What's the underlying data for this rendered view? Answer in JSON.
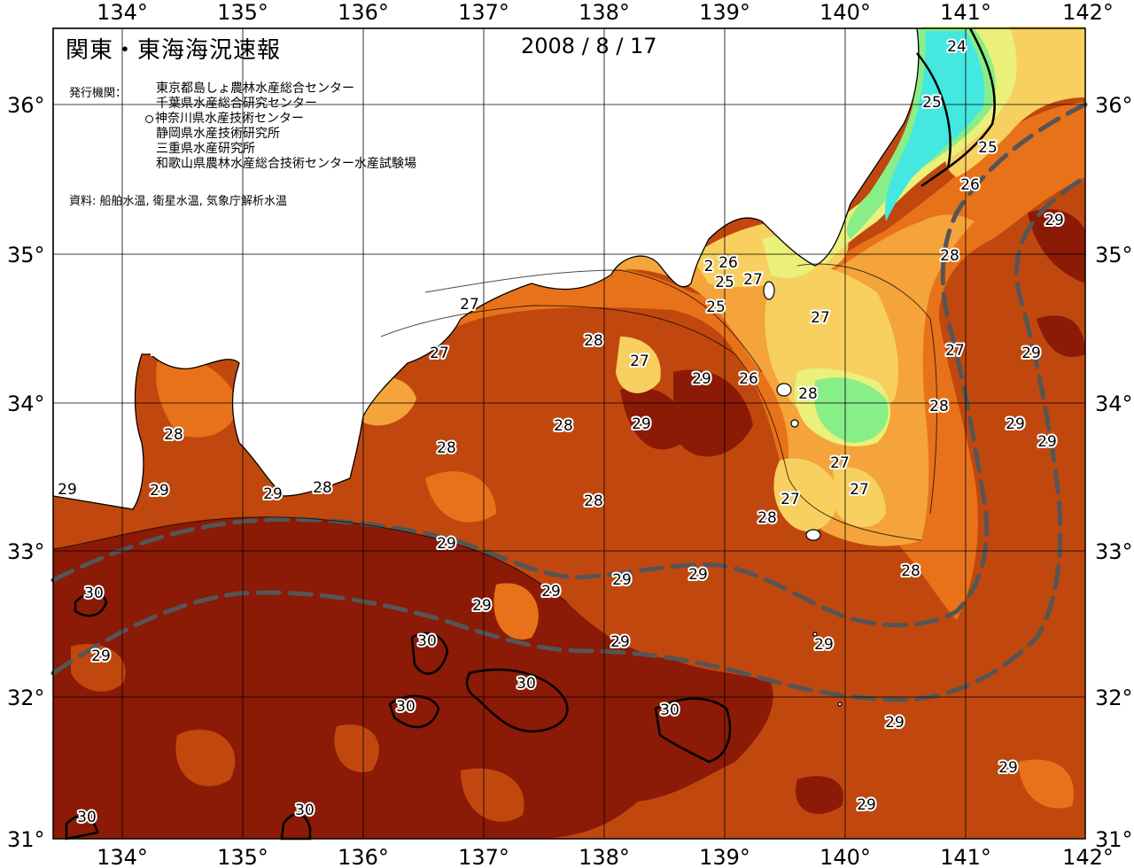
{
  "title": "関東・東海海況速報",
  "date": "2008 / 8 / 17",
  "institutions_label": "発行機関：",
  "institutions": [
    "東京都島しょ農林水産総合センター",
    "千葉県水産総合研究センター",
    "神奈川県水産技術センター",
    "静岡県水産技術研究所",
    "三重県水産研究所",
    "和歌山県農林水産総合技術センター水産試験場"
  ],
  "source": "資料: 船舶水温, 衛星水温, 気象庁解析水温",
  "axes": {
    "lon_ticks": [
      "134°",
      "135°",
      "136°",
      "137°",
      "138°",
      "139°",
      "140°",
      "141°",
      "142°"
    ],
    "lat_ticks": [
      "36°",
      "35°",
      "34°",
      "33°",
      "32°",
      "31°"
    ]
  },
  "colors": {
    "t30plus": "#8b1a06",
    "t29": "#c0480e",
    "t28": "#e8721a",
    "t27": "#f4a43a",
    "t26": "#f8d060",
    "t25": "#eaf07a",
    "t24": "#88ee88",
    "t23": "#44e8e0",
    "land": "#ffffff",
    "kuroshio_axis": "#555555"
  },
  "contour_labels": [
    {
      "text": "24"
    },
    {
      "text": "25"
    },
    {
      "text": "25"
    },
    {
      "text": "26"
    },
    {
      "text": "29"
    },
    {
      "text": "28"
    },
    {
      "text": "2"
    },
    {
      "text": "26"
    },
    {
      "text": "25"
    },
    {
      "text": "27"
    },
    {
      "text": "25"
    },
    {
      "text": "27"
    },
    {
      "text": "27"
    },
    {
      "text": "29"
    },
    {
      "text": "27"
    },
    {
      "text": "28"
    },
    {
      "text": "27"
    },
    {
      "text": "29"
    },
    {
      "text": "27"
    },
    {
      "text": "26"
    },
    {
      "text": "28"
    },
    {
      "text": "28"
    },
    {
      "text": "28"
    },
    {
      "text": "29"
    },
    {
      "text": "29"
    },
    {
      "text": "28"
    },
    {
      "text": "29"
    },
    {
      "text": "29"
    },
    {
      "text": "28"
    },
    {
      "text": "28"
    },
    {
      "text": "27"
    },
    {
      "text": "27"
    },
    {
      "text": "27"
    },
    {
      "text": "28"
    },
    {
      "text": "28"
    },
    {
      "text": "29"
    },
    {
      "text": "28"
    },
    {
      "text": "29"
    },
    {
      "text": "29"
    },
    {
      "text": "29"
    },
    {
      "text": "29"
    },
    {
      "text": "30"
    },
    {
      "text": "29"
    },
    {
      "text": "30"
    },
    {
      "text": "29"
    },
    {
      "text": "29"
    },
    {
      "text": "30"
    },
    {
      "text": "30"
    },
    {
      "text": "30"
    },
    {
      "text": "29"
    },
    {
      "text": "29"
    },
    {
      "text": "29"
    },
    {
      "text": "30"
    },
    {
      "text": "30"
    },
    {
      "text": "29"
    },
    {
      "text": "29"
    }
  ]
}
